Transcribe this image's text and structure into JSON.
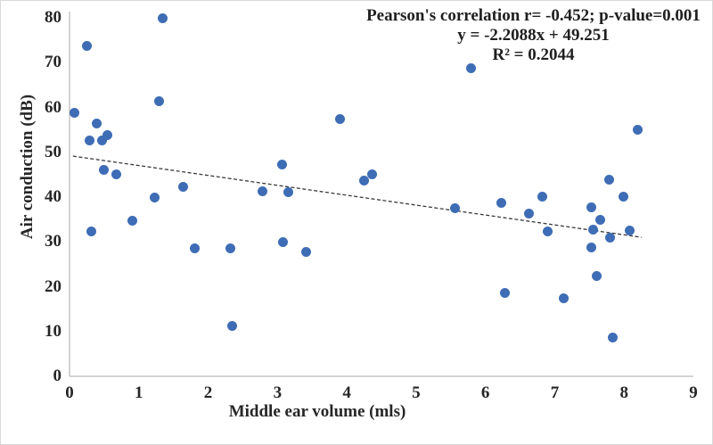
{
  "chart_data": {
    "type": "scatter",
    "title": "",
    "xlabel": "Middle ear volume (mls)",
    "ylabel": "Air conduction (dB)",
    "xlim": [
      0,
      9
    ],
    "ylim": [
      0,
      80
    ],
    "x_ticks": [
      "0",
      "1",
      "2",
      "3",
      "4",
      "5",
      "6",
      "7",
      "8",
      "9"
    ],
    "y_ticks": [
      "0",
      "10",
      "20",
      "30",
      "40",
      "50",
      "60",
      "70",
      "80"
    ],
    "grid": false,
    "legend": false,
    "points": [
      [
        0.07,
        58.8
      ],
      [
        0.25,
        73.7
      ],
      [
        0.29,
        52.7
      ],
      [
        0.31,
        32.4
      ],
      [
        0.39,
        56.5
      ],
      [
        0.47,
        52.6
      ],
      [
        0.5,
        46.1
      ],
      [
        0.54,
        53.8
      ],
      [
        0.68,
        45.0
      ],
      [
        0.91,
        34.8
      ],
      [
        1.23,
        40.0
      ],
      [
        1.29,
        61.3
      ],
      [
        1.34,
        80.0
      ],
      [
        1.64,
        42.3
      ],
      [
        1.8,
        28.6
      ],
      [
        2.32,
        28.6
      ],
      [
        2.35,
        11.2
      ],
      [
        2.78,
        41.2
      ],
      [
        3.07,
        47.3
      ],
      [
        3.08,
        30.0
      ],
      [
        3.16,
        41.1
      ],
      [
        3.41,
        27.7
      ],
      [
        3.9,
        57.5
      ],
      [
        4.25,
        43.6
      ],
      [
        4.37,
        45.0
      ],
      [
        5.56,
        37.6
      ],
      [
        5.79,
        68.8
      ],
      [
        6.23,
        38.7
      ],
      [
        6.28,
        18.6
      ],
      [
        6.63,
        36.3
      ],
      [
        6.82,
        40.1
      ],
      [
        6.9,
        32.4
      ],
      [
        7.13,
        17.4
      ],
      [
        7.53,
        37.8
      ],
      [
        7.53,
        28.7
      ],
      [
        7.55,
        32.8
      ],
      [
        7.61,
        22.3
      ],
      [
        7.66,
        34.9
      ],
      [
        7.79,
        43.9
      ],
      [
        7.8,
        31.0
      ],
      [
        7.84,
        8.7
      ],
      [
        7.99,
        40.1
      ],
      [
        8.08,
        32.6
      ],
      [
        8.19,
        55.1
      ]
    ],
    "trendline": {
      "slope": -2.2088,
      "intercept": 49.251,
      "x_start": 0.05,
      "x_end": 8.25,
      "style": "dashed",
      "color": "#3a3a3a"
    },
    "annotations": [
      "Pearson's correlation r= -0.452; p-value=0.001",
      "y = -2.2088x + 49.251",
      "R² = 0.2044"
    ],
    "stats": {
      "pearson_r": "-0.452",
      "p_value": "0.001",
      "equation": "y = -2.2088x + 49.251",
      "r_squared": "0.2044"
    },
    "colors": {
      "point": "#3e6db5",
      "axis": "#c6c6c6",
      "text": "#262626"
    }
  }
}
